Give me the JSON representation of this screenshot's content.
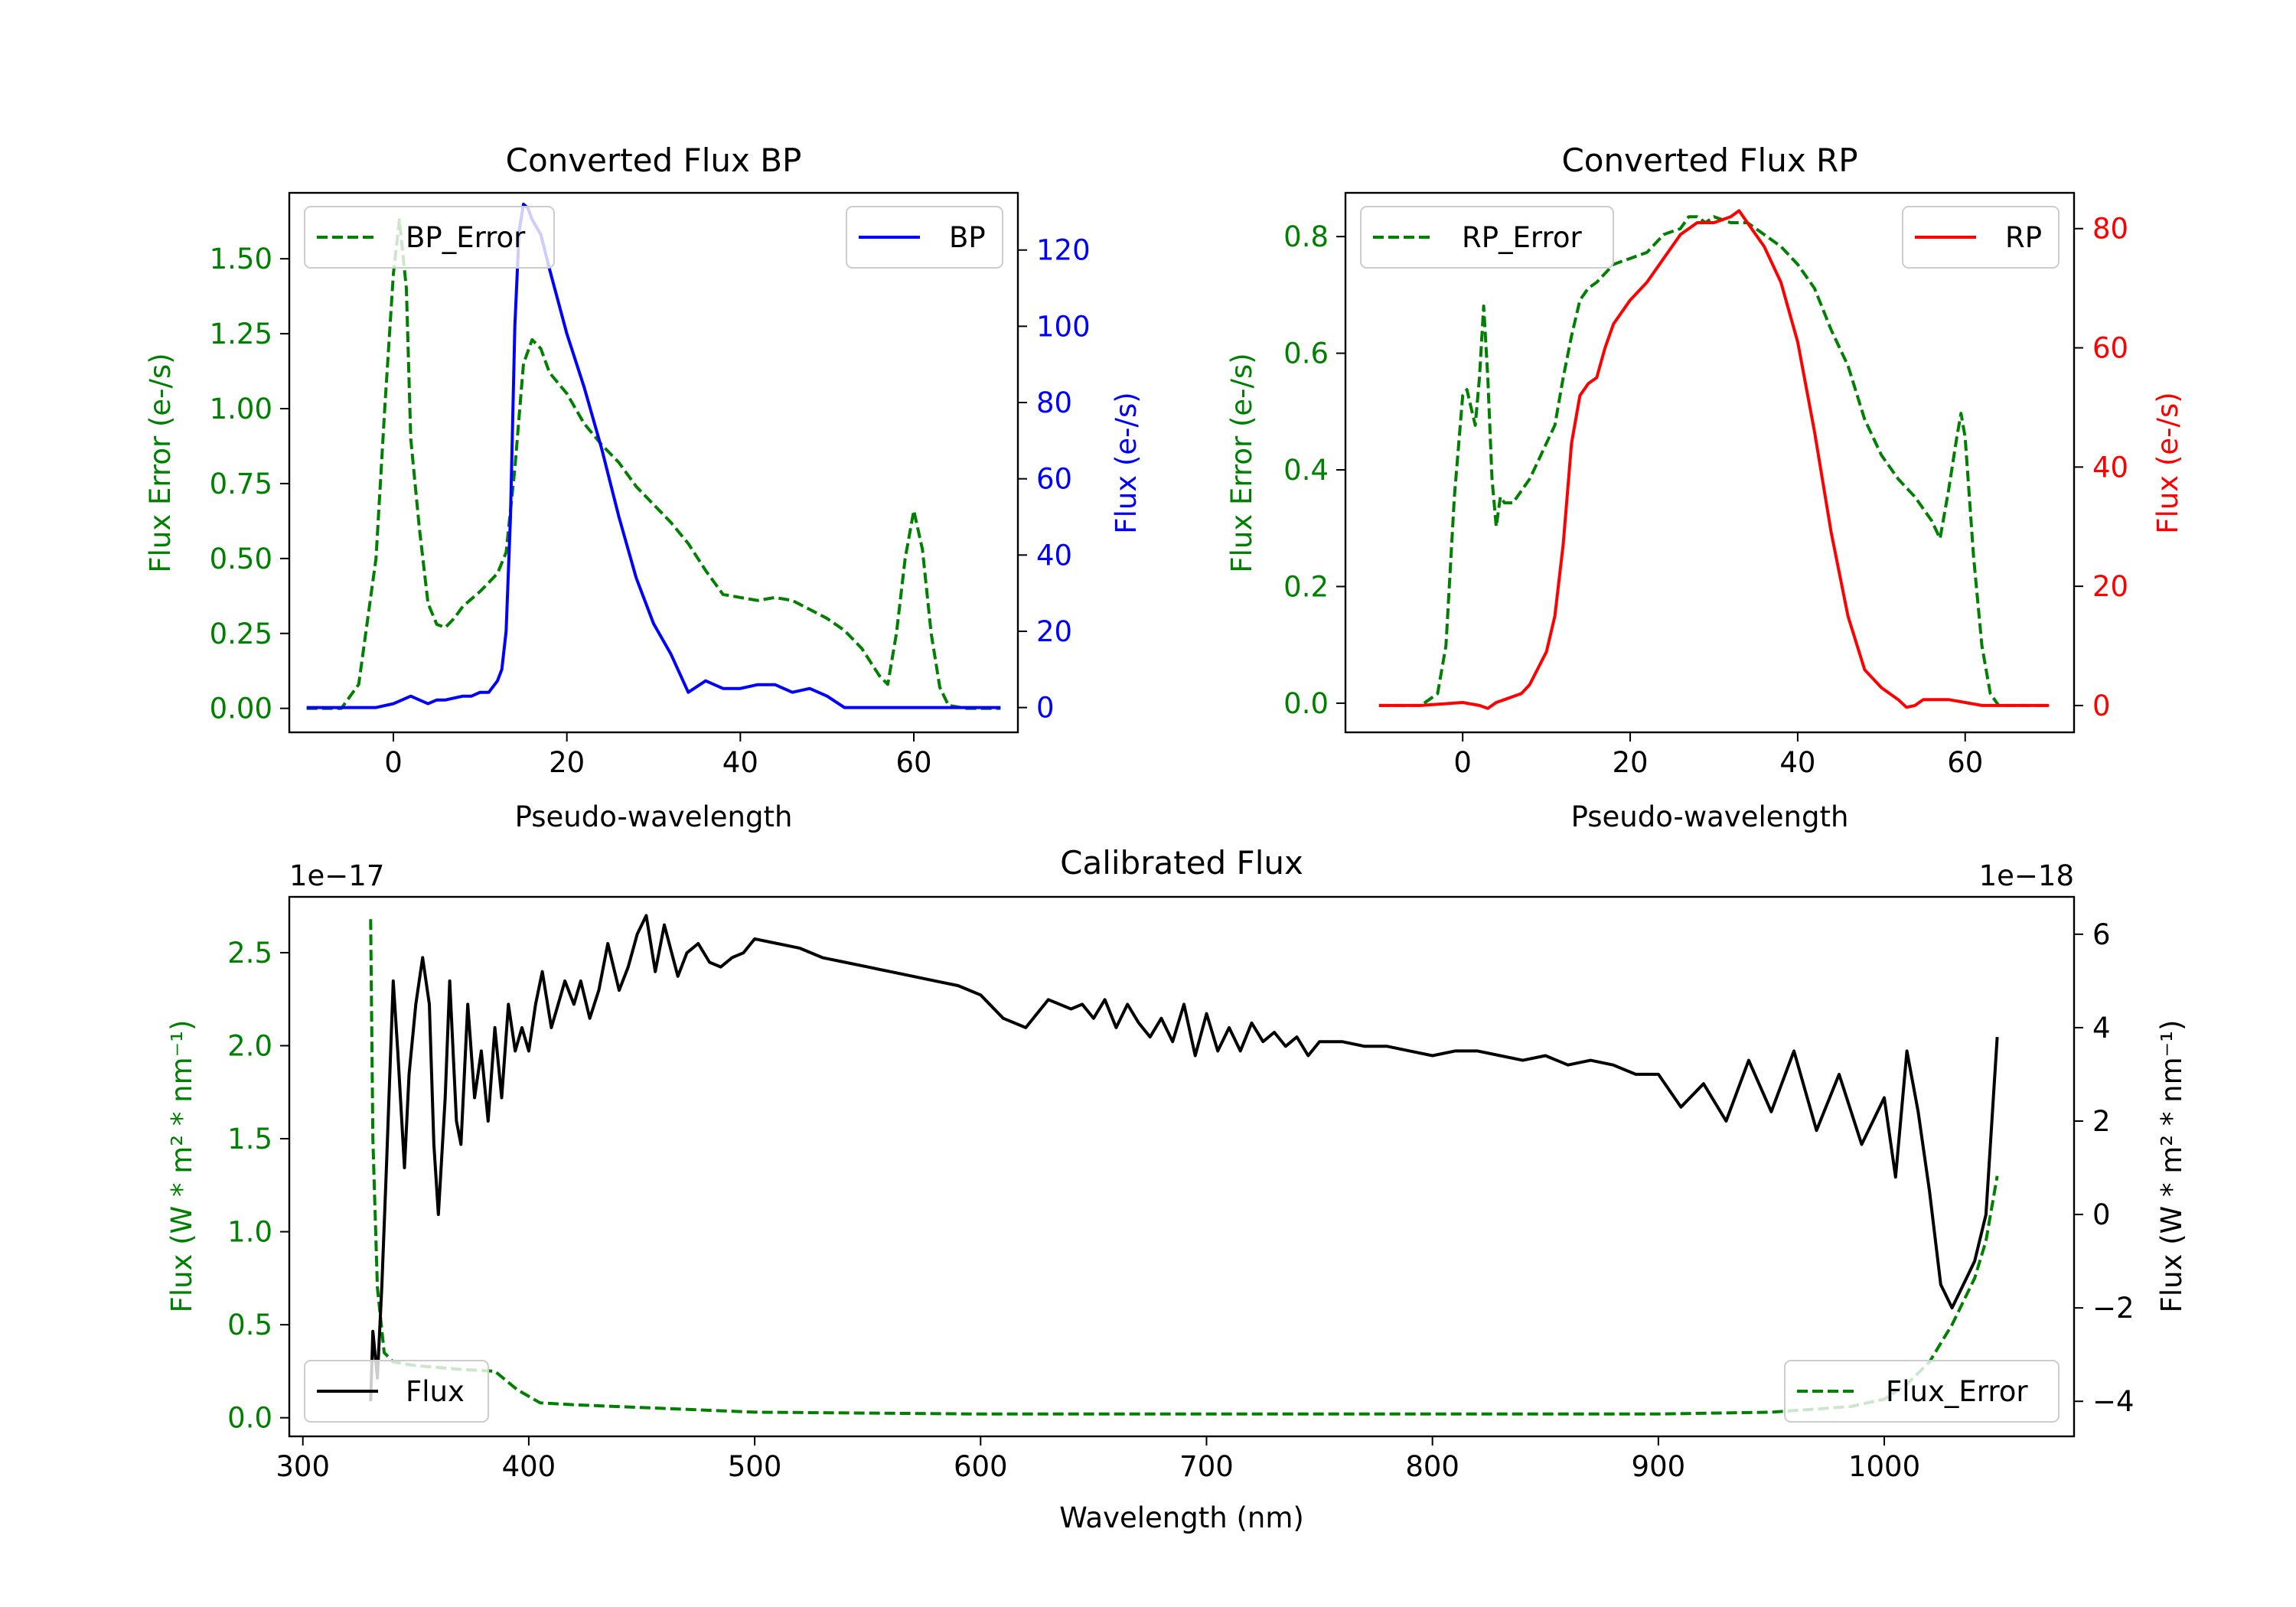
{
  "figure": {
    "sup_bp_title": "Converted Flux BP",
    "sup_rp_title": "Converted Flux RP",
    "sup_cal_title": "Calibrated Flux"
  },
  "chart_data": [
    {
      "id": "bp",
      "type": "line",
      "title": "Converted Flux BP",
      "xlabel": "Pseudo-wavelength",
      "ylabel_left": "Flux Error (e-/s)",
      "ylabel_right": "Flux (e-/s)",
      "xlim": [
        -12,
        72
      ],
      "xticks": [
        0,
        20,
        40,
        60
      ],
      "ylim_left": [
        -0.08,
        1.72
      ],
      "yticks_left": [
        0.0,
        0.25,
        0.5,
        0.75,
        1.0,
        1.25,
        1.5
      ],
      "ytick_labels_left": [
        "0.00",
        "0.25",
        "0.50",
        "0.75",
        "1.00",
        "1.25",
        "1.50"
      ],
      "ylim_right": [
        -6.5,
        135
      ],
      "yticks_right": [
        0,
        20,
        40,
        60,
        80,
        100,
        120
      ],
      "legend_left": "BP_Error",
      "legend_right": "BP",
      "colors": {
        "error": "#008000",
        "flux": "#0000ff",
        "left_axis": "#008000",
        "right_axis": "#0000ff"
      },
      "series": [
        {
          "name": "BP_Error",
          "axis": "left",
          "style": "dashed",
          "x": [
            -10,
            -6,
            -4,
            -2,
            -1,
            0,
            0.7,
            1.5,
            2,
            3,
            4,
            5,
            6,
            7,
            8,
            10,
            11,
            12,
            13,
            14,
            15,
            16,
            17,
            18,
            20,
            22,
            24,
            26,
            28,
            30,
            32,
            34,
            36,
            38,
            40,
            42,
            44,
            46,
            48,
            50,
            52,
            54,
            56,
            57,
            58,
            59,
            60,
            61,
            62,
            63,
            64,
            66,
            70
          ],
          "y": [
            0.0,
            0.0,
            0.08,
            0.5,
            1.0,
            1.45,
            1.63,
            1.4,
            0.9,
            0.6,
            0.35,
            0.28,
            0.27,
            0.3,
            0.34,
            0.39,
            0.42,
            0.45,
            0.52,
            0.8,
            1.15,
            1.23,
            1.2,
            1.12,
            1.05,
            0.95,
            0.88,
            0.82,
            0.74,
            0.68,
            0.62,
            0.55,
            0.46,
            0.38,
            0.37,
            0.36,
            0.37,
            0.36,
            0.33,
            0.3,
            0.26,
            0.2,
            0.11,
            0.08,
            0.25,
            0.5,
            0.66,
            0.53,
            0.25,
            0.07,
            0.01,
            0.0,
            0.0
          ]
        },
        {
          "name": "BP",
          "axis": "right",
          "style": "solid",
          "x": [
            -10,
            -5,
            -2,
            0,
            1,
            2,
            3,
            4,
            5,
            6,
            8,
            9,
            10,
            11,
            12,
            12.5,
            13,
            13.5,
            14,
            14.5,
            15,
            15.5,
            16,
            17,
            18,
            20,
            22,
            24,
            26,
            28,
            30,
            32,
            34,
            36,
            38,
            40,
            42,
            44,
            46,
            48,
            50,
            52,
            54,
            56,
            58,
            60,
            62,
            64,
            66,
            68,
            70
          ],
          "y": [
            0,
            0,
            0,
            1,
            2,
            3,
            2,
            1,
            2,
            2,
            3,
            3,
            4,
            4,
            7,
            10,
            20,
            50,
            100,
            125,
            132,
            131,
            128,
            124,
            115,
            98,
            84,
            68,
            50,
            34,
            22,
            14,
            4,
            7,
            5,
            5,
            6,
            6,
            4,
            5,
            3,
            0,
            0,
            0,
            0,
            0,
            0,
            0,
            0,
            0,
            0
          ]
        }
      ]
    },
    {
      "id": "rp",
      "type": "line",
      "title": "Converted Flux RP",
      "xlabel": "Pseudo-wavelength",
      "ylabel_left": "Flux Error (e-/s)",
      "ylabel_right": "Flux (e-/s)",
      "xlim": [
        -14,
        73
      ],
      "xticks": [
        0,
        20,
        40,
        60
      ],
      "ylim_left": [
        -0.05,
        0.875
      ],
      "yticks_left": [
        0.0,
        0.2,
        0.4,
        0.6,
        0.8
      ],
      "ytick_labels_left": [
        "0.0",
        "0.2",
        "0.4",
        "0.6",
        "0.8"
      ],
      "ylim_right": [
        -4.5,
        86
      ],
      "yticks_right": [
        0,
        20,
        40,
        60,
        80
      ],
      "legend_left": "RP_Error",
      "legend_right": "RP",
      "colors": {
        "error": "#008000",
        "flux": "#ff0000",
        "left_axis": "#008000",
        "right_axis": "#ff0000"
      },
      "series": [
        {
          "name": "RP_Error",
          "axis": "right_half",
          "style": "dashed",
          "x": [
            -10,
            -5,
            -3,
            -2,
            -1,
            0,
            0.5,
            1,
            1.5,
            2,
            2.5,
            3,
            3.5,
            4,
            4.5,
            5,
            6,
            7,
            8,
            9,
            10,
            11,
            12,
            13,
            14,
            15,
            16,
            18,
            20,
            22,
            24,
            26,
            27,
            28,
            29,
            30,
            32,
            34,
            36,
            38,
            40,
            42,
            44,
            46,
            48,
            50,
            52,
            54,
            55,
            56,
            57,
            58,
            59,
            59.5,
            60,
            61,
            62,
            63,
            64,
            66,
            70
          ],
          "y": [
            0.0,
            0.0,
            0.02,
            0.1,
            0.35,
            0.52,
            0.53,
            0.5,
            0.47,
            0.55,
            0.67,
            0.55,
            0.38,
            0.3,
            0.35,
            0.34,
            0.34,
            0.36,
            0.38,
            0.41,
            0.44,
            0.47,
            0.55,
            0.62,
            0.68,
            0.7,
            0.71,
            0.74,
            0.75,
            0.76,
            0.79,
            0.8,
            0.82,
            0.82,
            0.81,
            0.82,
            0.81,
            0.81,
            0.79,
            0.77,
            0.74,
            0.7,
            0.63,
            0.57,
            0.48,
            0.42,
            0.38,
            0.35,
            0.33,
            0.31,
            0.28,
            0.36,
            0.45,
            0.49,
            0.45,
            0.25,
            0.1,
            0.02,
            0.0,
            0.0,
            0.0
          ]
        },
        {
          "name": "RP",
          "axis": "right",
          "style": "solid",
          "x": [
            -10,
            -5,
            0,
            2,
            3,
            4,
            5,
            6,
            7,
            8,
            10,
            11,
            12,
            13,
            14,
            15,
            16,
            17,
            18,
            20,
            22,
            24,
            26,
            28,
            30,
            32,
            33,
            34,
            36,
            38,
            40,
            42,
            44,
            46,
            48,
            50,
            52,
            53,
            54,
            55,
            56,
            58,
            60,
            62,
            66,
            70
          ],
          "y": [
            0,
            0,
            0.5,
            0,
            -0.5,
            0.5,
            1,
            1.5,
            2,
            3.5,
            9,
            15,
            27,
            44,
            52,
            54,
            55,
            60,
            64,
            68,
            71,
            75,
            79,
            81,
            81,
            82,
            83,
            81,
            77,
            71,
            61,
            46,
            29,
            15,
            6,
            3,
            1,
            -0.3,
            0,
            1,
            1,
            1,
            0.5,
            0,
            0,
            0
          ]
        }
      ]
    },
    {
      "id": "cal",
      "type": "line",
      "title": "Calibrated Flux",
      "xlabel": "Wavelength (nm)",
      "ylabel_left": "Flux (W * m² * nm⁻¹)",
      "ylabel_right": "Flux (W * m² * nm⁻¹)",
      "offset_left": "1e−17",
      "offset_right": "1e−18",
      "xlim": [
        294,
        1084
      ],
      "xticks": [
        300,
        400,
        500,
        600,
        700,
        800,
        900,
        1000
      ],
      "ylim_left": [
        -0.1,
        2.8
      ],
      "yticks_left": [
        0.0,
        0.5,
        1.0,
        1.5,
        2.0,
        2.5
      ],
      "ytick_labels_left": [
        "0.0",
        "0.5",
        "1.0",
        "1.5",
        "2.0",
        "2.5"
      ],
      "ylim_right": [
        -4.75,
        6.8
      ],
      "yticks_right": [
        -4,
        -2,
        0,
        2,
        4,
        6
      ],
      "ytick_labels_right": [
        "−4",
        "−2",
        "0",
        "2",
        "4",
        "6"
      ],
      "legend_left": "Flux",
      "legend_right": "Flux_Error",
      "colors": {
        "error": "#008000",
        "flux": "#000000",
        "left_axis": "#008000",
        "right_axis": "#000000"
      },
      "series": [
        {
          "name": "Flux_Error",
          "axis": "left",
          "style": "dashed",
          "x": [
            330,
            331,
            333,
            336,
            340,
            350,
            370,
            385,
            395,
            405,
            420,
            440,
            460,
            480,
            500,
            550,
            600,
            640,
            700,
            800,
            900,
            950,
            985,
            1000,
            1010,
            1020,
            1025,
            1030,
            1040,
            1045,
            1050
          ],
          "y": [
            2.68,
            1.5,
            0.7,
            0.35,
            0.3,
            0.28,
            0.26,
            0.25,
            0.15,
            0.08,
            0.07,
            0.06,
            0.05,
            0.04,
            0.03,
            0.025,
            0.02,
            0.02,
            0.02,
            0.02,
            0.02,
            0.03,
            0.06,
            0.1,
            0.18,
            0.3,
            0.4,
            0.5,
            0.75,
            0.95,
            1.3
          ]
        },
        {
          "name": "Flux",
          "axis": "right",
          "style": "solid",
          "x": [
            330,
            331,
            333,
            335,
            337,
            340,
            342,
            345,
            347,
            350,
            353,
            356,
            358,
            360,
            363,
            365,
            368,
            370,
            373,
            376,
            379,
            382,
            385,
            388,
            391,
            394,
            397,
            400,
            403,
            406,
            410,
            413,
            416,
            420,
            423,
            427,
            431,
            435,
            440,
            444,
            448,
            452,
            456,
            460,
            466,
            470,
            475,
            480,
            485,
            490,
            495,
            500,
            510,
            520,
            530,
            540,
            550,
            560,
            570,
            580,
            590,
            600,
            610,
            620,
            630,
            640,
            645,
            650,
            655,
            660,
            665,
            670,
            675,
            680,
            685,
            690,
            695,
            700,
            705,
            710,
            715,
            720,
            725,
            730,
            735,
            740,
            745,
            750,
            760,
            770,
            780,
            790,
            800,
            810,
            820,
            830,
            840,
            850,
            860,
            870,
            880,
            890,
            900,
            910,
            920,
            930,
            940,
            950,
            960,
            970,
            980,
            990,
            1000,
            1005,
            1010,
            1015,
            1020,
            1025,
            1030,
            1035,
            1040,
            1045,
            1050
          ],
          "y": [
            -4.0,
            -2.5,
            -3.5,
            -1.5,
            1.0,
            5.0,
            3.5,
            1.0,
            3.0,
            4.5,
            5.5,
            4.5,
            1.5,
            0.0,
            2.5,
            5.0,
            2.0,
            1.5,
            4.5,
            2.5,
            3.5,
            2.0,
            4.0,
            2.5,
            4.5,
            3.5,
            4.0,
            3.5,
            4.5,
            5.2,
            4.0,
            4.5,
            5.0,
            4.5,
            5.0,
            4.2,
            4.8,
            5.8,
            4.8,
            5.3,
            6.0,
            6.4,
            5.2,
            6.2,
            5.1,
            5.6,
            5.8,
            5.4,
            5.3,
            5.5,
            5.6,
            5.9,
            5.8,
            5.7,
            5.5,
            5.4,
            5.3,
            5.2,
            5.1,
            5.0,
            4.9,
            4.7,
            4.2,
            4.0,
            4.6,
            4.4,
            4.5,
            4.2,
            4.6,
            4.0,
            4.5,
            4.1,
            3.8,
            4.2,
            3.7,
            4.5,
            3.4,
            4.3,
            3.5,
            4.0,
            3.5,
            4.1,
            3.7,
            3.9,
            3.6,
            3.8,
            3.4,
            3.7,
            3.7,
            3.6,
            3.6,
            3.5,
            3.4,
            3.5,
            3.5,
            3.4,
            3.3,
            3.4,
            3.2,
            3.3,
            3.2,
            3.0,
            3.0,
            2.3,
            2.8,
            2.0,
            3.3,
            2.2,
            3.5,
            1.8,
            3.0,
            1.5,
            2.5,
            0.8,
            3.5,
            2.2,
            0.5,
            -1.5,
            -2.0,
            -1.5,
            -1.0,
            0.0,
            3.8
          ]
        }
      ]
    }
  ]
}
